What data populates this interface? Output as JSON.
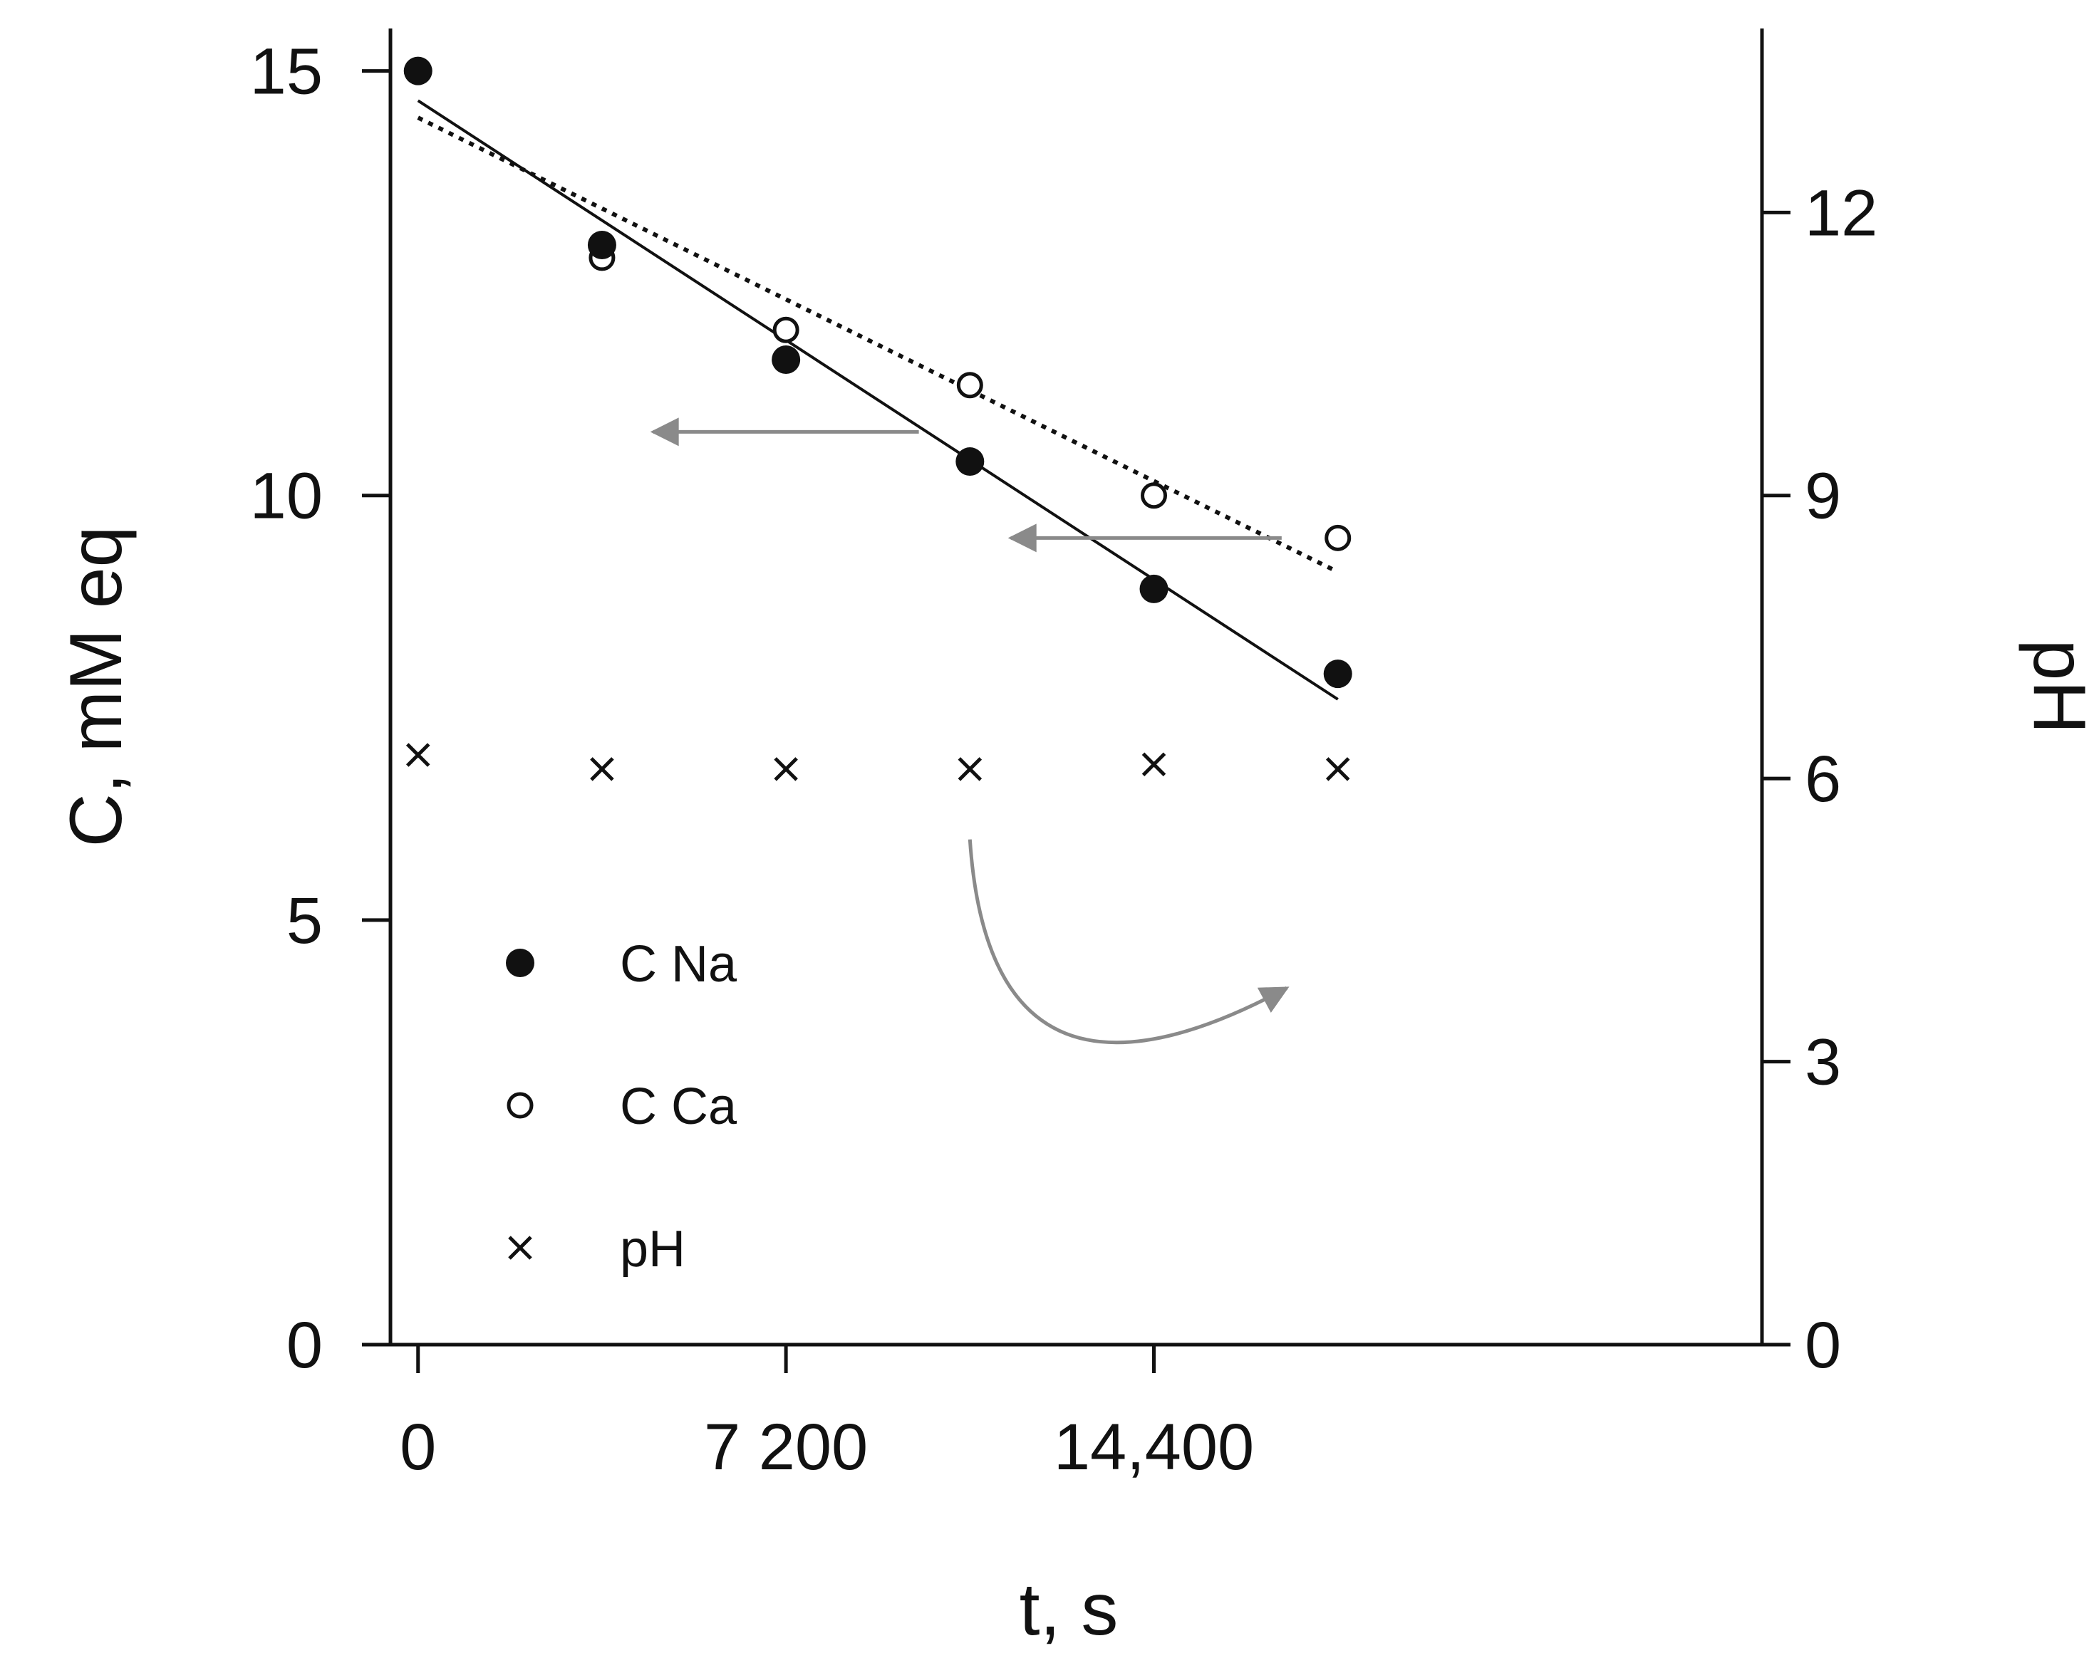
{
  "chart_data": {
    "type": "scatter",
    "title": "",
    "xlabel": "t, s",
    "ylabel": "C, mM eq",
    "y2label": "pH",
    "xlim": [
      -540,
      26300
    ],
    "ylim": [
      0,
      15.5
    ],
    "y2lim": [
      0,
      13.95
    ],
    "xticks": [
      0,
      7200,
      14400
    ],
    "xtick_labels": [
      "0",
      "7 200",
      "14,400"
    ],
    "yticks": [
      0,
      5,
      10,
      15
    ],
    "ytick_labels": [
      "0",
      "5",
      "10",
      "15"
    ],
    "y2ticks": [
      0,
      3,
      6,
      9,
      12
    ],
    "y2tick_labels": [
      "0",
      "3",
      "6",
      "9",
      "12"
    ],
    "grid": false,
    "legend_position": "lower-left",
    "series": [
      {
        "name": "C Na",
        "marker": "filled-circle",
        "axis": "left",
        "x": [
          0,
          3600,
          7200,
          10800,
          14400,
          18000
        ],
        "y": [
          15.0,
          12.95,
          11.6,
          10.4,
          8.9,
          7.9
        ]
      },
      {
        "name": "C Ca",
        "marker": "open-circle",
        "axis": "left",
        "x": [
          0,
          3600,
          7200,
          10800,
          14400,
          18000
        ],
        "y": [
          15.0,
          12.8,
          11.95,
          11.3,
          10.0,
          9.5
        ]
      },
      {
        "name": "pH",
        "marker": "cross",
        "axis": "right",
        "x": [
          0,
          3600,
          7200,
          10800,
          14400,
          18000
        ],
        "y": [
          6.25,
          6.1,
          6.1,
          6.1,
          6.15,
          6.1
        ]
      }
    ],
    "fit_lines": [
      {
        "name": "C Na fit",
        "style": "solid",
        "x": [
          0,
          18000
        ],
        "y": [
          14.65,
          7.6
        ]
      },
      {
        "name": "C Ca fit",
        "style": "dotted",
        "x": [
          0,
          18000
        ],
        "y": [
          14.45,
          9.1
        ]
      }
    ],
    "annotations": [
      {
        "name": "arrow to left axis (C Na)",
        "kind": "straight",
        "from": [
          9800,
          10.75
        ],
        "to": [
          4600,
          10.75
        ]
      },
      {
        "name": "arrow to left axis (C Ca)",
        "kind": "straight",
        "from": [
          16900,
          9.5
        ],
        "to": [
          11600,
          9.5
        ]
      },
      {
        "name": "arrow to right axis (pH)",
        "kind": "curved",
        "from": [
          10800,
          5.95
        ],
        "via": [
          11200,
          4.5
        ],
        "to": [
          17000,
          4.2
        ]
      }
    ],
    "colors": {
      "axis": "#111111",
      "data": "#111111",
      "annotation_arrow": "#8a8a8a"
    }
  }
}
